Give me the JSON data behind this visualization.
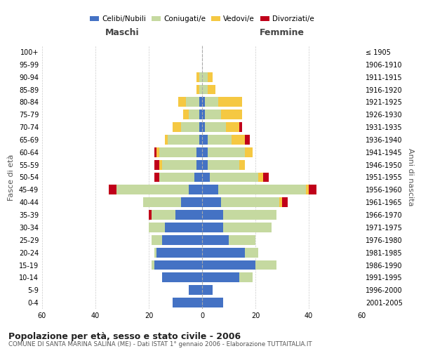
{
  "age_groups": [
    "0-4",
    "5-9",
    "10-14",
    "15-19",
    "20-24",
    "25-29",
    "30-34",
    "35-39",
    "40-44",
    "45-49",
    "50-54",
    "55-59",
    "60-64",
    "65-69",
    "70-74",
    "75-79",
    "80-84",
    "85-89",
    "90-94",
    "95-99",
    "100+"
  ],
  "birth_years": [
    "2001-2005",
    "1996-2000",
    "1991-1995",
    "1986-1990",
    "1981-1985",
    "1976-1980",
    "1971-1975",
    "1966-1970",
    "1961-1965",
    "1956-1960",
    "1951-1955",
    "1946-1950",
    "1941-1945",
    "1936-1940",
    "1931-1935",
    "1926-1930",
    "1921-1925",
    "1916-1920",
    "1911-1915",
    "1906-1910",
    "≤ 1905"
  ],
  "male": {
    "celibi": [
      11,
      5,
      15,
      18,
      17,
      15,
      14,
      10,
      8,
      5,
      3,
      2,
      2,
      1,
      1,
      1,
      1,
      0,
      0,
      0,
      0
    ],
    "coniugati": [
      0,
      0,
      0,
      1,
      1,
      4,
      6,
      9,
      14,
      27,
      13,
      13,
      14,
      12,
      7,
      4,
      5,
      1,
      1,
      0,
      0
    ],
    "vedovi": [
      0,
      0,
      0,
      0,
      0,
      0,
      0,
      0,
      0,
      0,
      0,
      1,
      1,
      1,
      3,
      2,
      3,
      1,
      1,
      0,
      0
    ],
    "divorziati": [
      0,
      0,
      0,
      0,
      0,
      0,
      0,
      1,
      0,
      3,
      2,
      2,
      1,
      0,
      0,
      0,
      0,
      0,
      0,
      0,
      0
    ]
  },
  "female": {
    "nubili": [
      8,
      4,
      14,
      20,
      16,
      10,
      8,
      8,
      7,
      6,
      3,
      2,
      2,
      2,
      1,
      1,
      1,
      0,
      0,
      0,
      0
    ],
    "coniugate": [
      0,
      0,
      5,
      8,
      5,
      10,
      18,
      20,
      22,
      33,
      18,
      12,
      14,
      9,
      8,
      6,
      5,
      2,
      2,
      0,
      0
    ],
    "vedove": [
      0,
      0,
      0,
      0,
      0,
      0,
      0,
      0,
      1,
      1,
      2,
      2,
      3,
      5,
      5,
      8,
      9,
      3,
      2,
      0,
      0
    ],
    "divorziate": [
      0,
      0,
      0,
      0,
      0,
      0,
      0,
      0,
      2,
      3,
      2,
      0,
      0,
      2,
      1,
      0,
      0,
      0,
      0,
      0,
      0
    ]
  },
  "color_celibi": "#4472c4",
  "color_coniugati": "#c5d9a0",
  "color_vedovi": "#f5c842",
  "color_divorziati": "#c0001a",
  "xlim": 60,
  "title_main": "Popolazione per età, sesso e stato civile - 2006",
  "title_sub": "COMUNE DI SANTA MARINA SALINA (ME) - Dati ISTAT 1° gennaio 2006 - Elaborazione TUTTAITALIA.IT",
  "ylabel_left": "Fasce di età",
  "ylabel_right": "Anni di nascita",
  "label_maschi": "Maschi",
  "label_femmine": "Femmine",
  "legend_celibi": "Celibi/Nubili",
  "legend_coniugati": "Coniugati/e",
  "legend_vedovi": "Vedovi/e",
  "legend_divorziati": "Divorziati/e",
  "bg_color": "#ffffff",
  "grid_color": "#cccccc"
}
